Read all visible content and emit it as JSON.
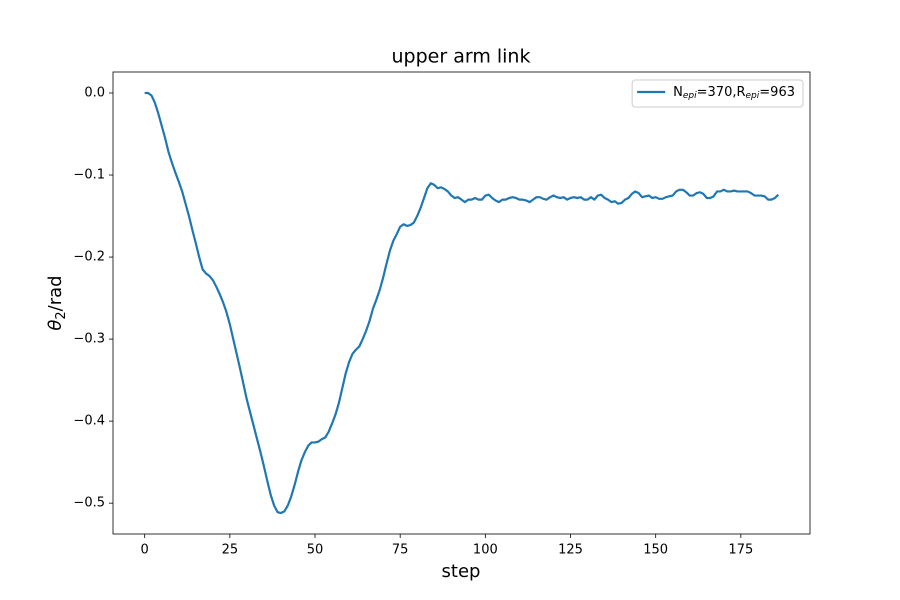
{
  "chart_data": {
    "type": "line",
    "title": "upper arm link",
    "xlabel": "step",
    "ylabel": [
      "θ",
      "2",
      "/rad"
    ],
    "xlim": [
      -9.3,
      195.3
    ],
    "xticks": [
      0,
      25,
      50,
      75,
      100,
      125,
      150,
      175
    ],
    "ylim": [
      -0.5376,
      0.0256
    ],
    "yticks": [
      {
        "value": 0.0,
        "label": "0.0"
      },
      {
        "value": -0.1,
        "label": "−0.1"
      },
      {
        "value": -0.2,
        "label": "−0.2"
      },
      {
        "value": -0.3,
        "label": "−0.3"
      },
      {
        "value": -0.4,
        "label": "−0.4"
      },
      {
        "value": -0.5,
        "label": "−0.5"
      }
    ],
    "grid": false,
    "legend": "upper right",
    "x": [
      0,
      1,
      2,
      3,
      4,
      5,
      6,
      7,
      8,
      9,
      10,
      11,
      12,
      13,
      14,
      15,
      16,
      17,
      18,
      19,
      20,
      21,
      22,
      23,
      24,
      25,
      26,
      27,
      28,
      29,
      30,
      31,
      32,
      33,
      34,
      35,
      36,
      37,
      38,
      39,
      40,
      41,
      42,
      43,
      44,
      45,
      46,
      47,
      48,
      49,
      50,
      51,
      52,
      53,
      54,
      55,
      56,
      57,
      58,
      59,
      60,
      61,
      62,
      63,
      64,
      65,
      66,
      67,
      68,
      69,
      70,
      71,
      72,
      73,
      74,
      75,
      76,
      77,
      78,
      79,
      80,
      81,
      82,
      83,
      84,
      85,
      86,
      87,
      88,
      89,
      90,
      91,
      92,
      93,
      94,
      95,
      96,
      97,
      98,
      99,
      100,
      101,
      102,
      103,
      104,
      105,
      106,
      107,
      108,
      109,
      110,
      111,
      112,
      113,
      114,
      115,
      116,
      117,
      118,
      119,
      120,
      121,
      122,
      123,
      124,
      125,
      126,
      127,
      128,
      129,
      130,
      131,
      132,
      133,
      134,
      135,
      136,
      137,
      138,
      139,
      140,
      141,
      142,
      143,
      144,
      145,
      146,
      147,
      148,
      149,
      150,
      151,
      152,
      153,
      154,
      155,
      156,
      157,
      158,
      159,
      160,
      161,
      162,
      163,
      164,
      165,
      166,
      167,
      168,
      169,
      170,
      171,
      172,
      173,
      174,
      175,
      176,
      177,
      178,
      179,
      180,
      181,
      182,
      183,
      184,
      185,
      186
    ],
    "series": [
      {
        "name": [
          "N",
          "epi",
          "=370,R",
          "epi",
          "=963"
        ],
        "color": "#1f77b4",
        "values": [
          0.0,
          0.0,
          -0.003,
          -0.012,
          -0.025,
          -0.04,
          -0.055,
          -0.072,
          -0.085,
          -0.097,
          -0.108,
          -0.12,
          -0.135,
          -0.15,
          -0.167,
          -0.183,
          -0.2,
          -0.215,
          -0.22,
          -0.223,
          -0.228,
          -0.236,
          -0.245,
          -0.255,
          -0.267,
          -0.282,
          -0.3,
          -0.318,
          -0.336,
          -0.355,
          -0.374,
          -0.39,
          -0.406,
          -0.422,
          -0.438,
          -0.455,
          -0.473,
          -0.49,
          -0.503,
          -0.511,
          -0.512,
          -0.51,
          -0.503,
          -0.492,
          -0.478,
          -0.462,
          -0.448,
          -0.438,
          -0.43,
          -0.426,
          -0.426,
          -0.425,
          -0.422,
          -0.42,
          -0.413,
          -0.403,
          -0.392,
          -0.378,
          -0.36,
          -0.342,
          -0.328,
          -0.318,
          -0.313,
          -0.309,
          -0.3,
          -0.29,
          -0.278,
          -0.263,
          -0.252,
          -0.24,
          -0.225,
          -0.208,
          -0.192,
          -0.18,
          -0.172,
          -0.163,
          -0.16,
          -0.162,
          -0.161,
          -0.158,
          -0.15,
          -0.14,
          -0.128,
          -0.116,
          -0.11,
          -0.112,
          -0.116,
          -0.115,
          -0.117,
          -0.12,
          -0.125,
          -0.128,
          -0.127,
          -0.13,
          -0.133,
          -0.13,
          -0.13,
          -0.128,
          -0.13,
          -0.13,
          -0.125,
          -0.124,
          -0.128,
          -0.131,
          -0.133,
          -0.13,
          -0.13,
          -0.128,
          -0.127,
          -0.128,
          -0.13,
          -0.13,
          -0.131,
          -0.133,
          -0.13,
          -0.127,
          -0.127,
          -0.129,
          -0.13,
          -0.127,
          -0.125,
          -0.127,
          -0.128,
          -0.127,
          -0.13,
          -0.128,
          -0.127,
          -0.128,
          -0.127,
          -0.13,
          -0.13,
          -0.127,
          -0.13,
          -0.125,
          -0.124,
          -0.128,
          -0.13,
          -0.133,
          -0.132,
          -0.135,
          -0.134,
          -0.13,
          -0.128,
          -0.123,
          -0.12,
          -0.122,
          -0.127,
          -0.126,
          -0.125,
          -0.128,
          -0.127,
          -0.129,
          -0.129,
          -0.127,
          -0.126,
          -0.125,
          -0.12,
          -0.118,
          -0.118,
          -0.121,
          -0.125,
          -0.125,
          -0.122,
          -0.121,
          -0.123,
          -0.128,
          -0.128,
          -0.126,
          -0.12,
          -0.12,
          -0.118,
          -0.12,
          -0.12,
          -0.119,
          -0.12,
          -0.12,
          -0.12,
          -0.12,
          -0.122,
          -0.125,
          -0.125,
          -0.125,
          -0.126,
          -0.13,
          -0.13,
          -0.128,
          -0.124
        ]
      }
    ]
  }
}
